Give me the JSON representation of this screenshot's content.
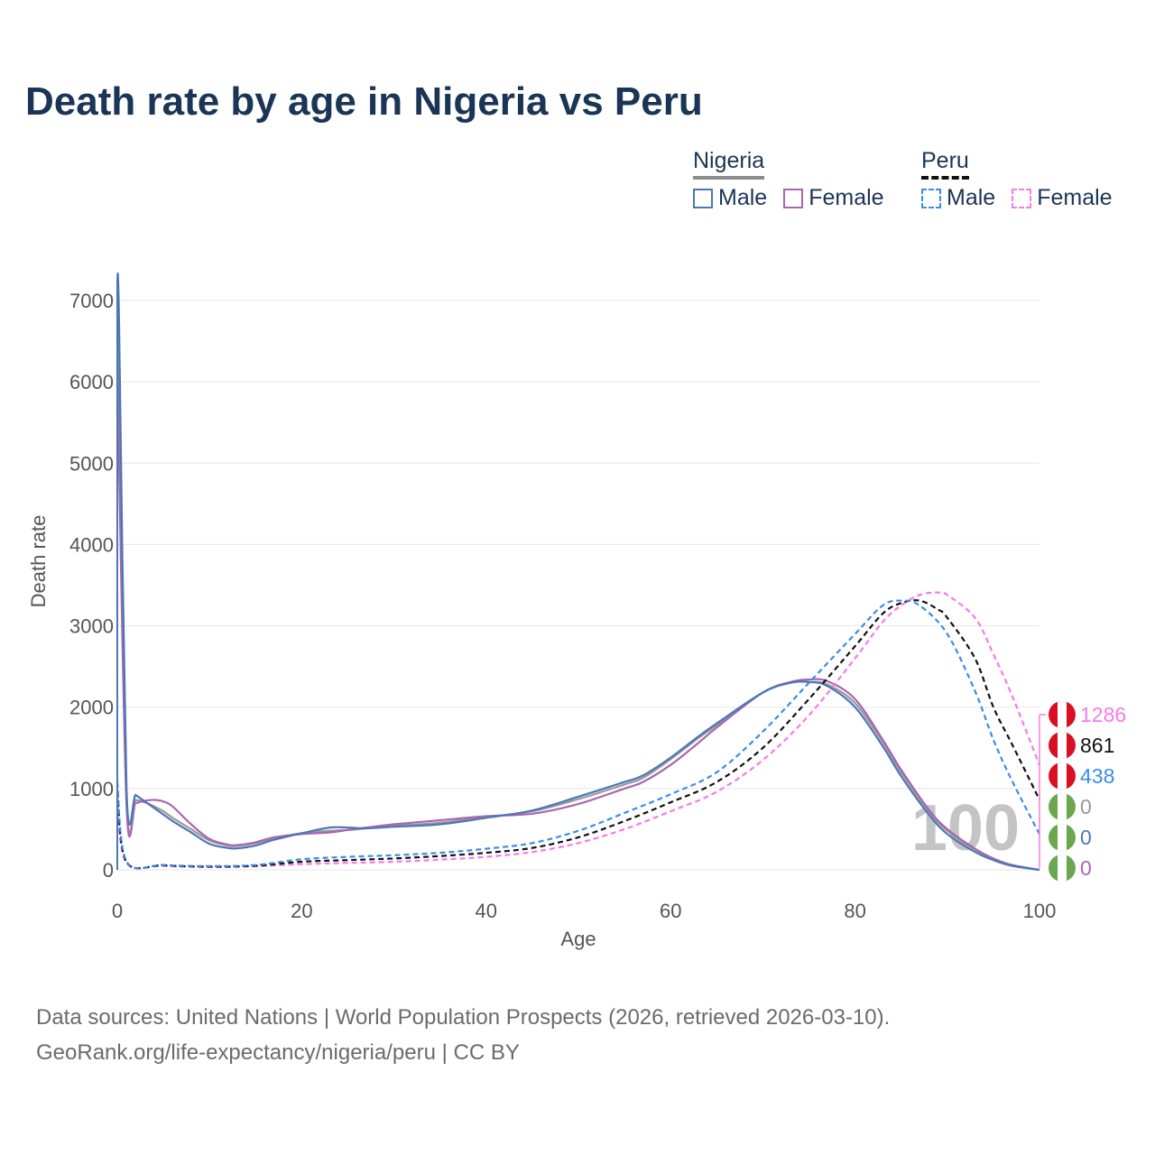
{
  "title": "Death rate by age in Nigeria vs Peru",
  "legend": {
    "nigeria": {
      "title": "Nigeria",
      "male": "Male",
      "female": "Female",
      "underline_color": "#8c8c8c"
    },
    "peru": {
      "title": "Peru",
      "male": "Male",
      "female": "Female",
      "underline_color": "#111111"
    }
  },
  "colors": {
    "nigeria_male": "#4a78b5",
    "nigeria_female": "#a966b0",
    "nigeria_total": "#999999",
    "peru_male": "#3d8ce8",
    "peru_female": "#f57be8",
    "peru_total": "#111111"
  },
  "end_labels": [
    {
      "series": "peru_female",
      "text": "1286",
      "color": "#f57be8",
      "flag": "flag-peru"
    },
    {
      "series": "peru_total",
      "text": "861",
      "color": "#111111",
      "flag": "flag-peru"
    },
    {
      "series": "peru_male",
      "text": "438",
      "color": "#3d8ce8",
      "flag": "flag-peru"
    },
    {
      "series": "nigeria_total",
      "text": "0",
      "color": "#999999",
      "flag": "flag-nigeria"
    },
    {
      "series": "nigeria_male",
      "text": "0",
      "color": "#4a78b5",
      "flag": "flag-nigeria"
    },
    {
      "series": "nigeria_female",
      "text": "0",
      "color": "#a966b0",
      "flag": "flag-nigeria"
    }
  ],
  "watermark": "100",
  "source_lines": [
    "Data sources: United Nations | World Population Prospects (2026, retrieved 2026-03-10).",
    "GeoRank.org/life-expectancy/nigeria/peru | CC BY"
  ],
  "chart_data": {
    "type": "line",
    "title": "Death rate by age in Nigeria vs Peru",
    "xlabel": "Age",
    "ylabel": "Death rate",
    "xlim": [
      0,
      100
    ],
    "ylim": [
      0,
      7000
    ],
    "xticks": [
      0,
      20,
      40,
      60,
      80,
      100
    ],
    "yticks": [
      0,
      1000,
      2000,
      3000,
      4000,
      5000,
      6000,
      7000
    ],
    "grid": true,
    "series": [
      {
        "key": "nigeria_total",
        "name": "Nigeria",
        "dashed": false,
        "x": [
          0,
          1,
          2,
          3,
          4,
          5,
          6,
          8,
          10,
          12,
          13,
          15,
          17,
          20,
          23,
          25,
          27,
          30,
          35,
          40,
          45,
          50,
          55,
          57,
          60,
          63,
          65,
          70,
          73,
          75,
          77,
          80,
          83,
          85,
          88,
          90,
          93,
          95,
          97,
          100
        ],
        "y": [
          6700,
          880,
          860,
          830,
          780,
          720,
          640,
          500,
          360,
          300,
          295,
          330,
          390,
          450,
          480,
          490,
          510,
          540,
          580,
          650,
          720,
          870,
          1050,
          1130,
          1360,
          1620,
          1780,
          2180,
          2300,
          2310,
          2280,
          2050,
          1570,
          1200,
          720,
          480,
          250,
          140,
          60,
          0
        ]
      },
      {
        "key": "nigeria_male",
        "name": "Nigeria Male",
        "dashed": false,
        "x": [
          0,
          0.2,
          1,
          2,
          3,
          4,
          5,
          6,
          8,
          10,
          12,
          13,
          15,
          17,
          20,
          23,
          25,
          27,
          30,
          35,
          40,
          45,
          50,
          55,
          57,
          60,
          63,
          65,
          70,
          73,
          75,
          77,
          80,
          83,
          85,
          88,
          90,
          93,
          95,
          97,
          100
        ],
        "y": [
          7250,
          6700,
          1000,
          920,
          840,
          760,
          680,
          600,
          460,
          320,
          270,
          265,
          300,
          370,
          450,
          520,
          520,
          510,
          530,
          560,
          640,
          730,
          900,
          1080,
          1160,
          1380,
          1640,
          1800,
          2180,
          2300,
          2310,
          2260,
          2000,
          1520,
          1150,
          680,
          440,
          220,
          120,
          50,
          0
        ]
      },
      {
        "key": "nigeria_female",
        "name": "Nigeria Female",
        "dashed": false,
        "x": [
          0,
          1,
          2,
          3,
          4,
          5,
          6,
          8,
          10,
          12,
          13,
          15,
          17,
          20,
          23,
          25,
          27,
          30,
          35,
          40,
          45,
          50,
          55,
          57,
          60,
          63,
          65,
          70,
          73,
          75,
          77,
          80,
          83,
          85,
          88,
          90,
          93,
          95,
          97,
          100
        ],
        "y": [
          6150,
          800,
          820,
          850,
          860,
          840,
          780,
          560,
          380,
          310,
          305,
          340,
          400,
          440,
          460,
          490,
          520,
          560,
          610,
          660,
          690,
          810,
          1000,
          1080,
          1290,
          1560,
          1750,
          2180,
          2310,
          2340,
          2320,
          2100,
          1600,
          1230,
          740,
          500,
          260,
          140,
          60,
          0
        ]
      },
      {
        "key": "peru_male",
        "name": "Peru Male",
        "dashed": true,
        "x": [
          0,
          1,
          5,
          10,
          15,
          20,
          25,
          30,
          35,
          40,
          45,
          50,
          55,
          60,
          65,
          70,
          75,
          80,
          83,
          85,
          87,
          90,
          93,
          95,
          97,
          100
        ],
        "y": [
          1080,
          105,
          60,
          45,
          60,
          130,
          160,
          180,
          210,
          260,
          330,
          480,
          700,
          930,
          1200,
          1700,
          2300,
          2900,
          3250,
          3310,
          3250,
          2900,
          2200,
          1600,
          1100,
          438
        ]
      },
      {
        "key": "peru_total",
        "name": "Peru",
        "dashed": true,
        "x": [
          0,
          1,
          5,
          10,
          15,
          20,
          25,
          30,
          35,
          40,
          45,
          50,
          55,
          60,
          65,
          70,
          75,
          80,
          83,
          85,
          87,
          89,
          90,
          93,
          95,
          97,
          100
        ],
        "y": [
          950,
          95,
          55,
          40,
          50,
          100,
          120,
          140,
          170,
          210,
          270,
          400,
          600,
          830,
          1080,
          1500,
          2100,
          2750,
          3150,
          3280,
          3310,
          3200,
          3100,
          2600,
          2000,
          1550,
          861
        ]
      },
      {
        "key": "peru_female",
        "name": "Peru Female",
        "dashed": true,
        "x": [
          0,
          1,
          5,
          10,
          15,
          20,
          25,
          30,
          35,
          40,
          45,
          50,
          55,
          60,
          65,
          70,
          75,
          80,
          83,
          85,
          87,
          89,
          90,
          93,
          95,
          97,
          100
        ],
        "y": [
          830,
          85,
          50,
          35,
          45,
          70,
          85,
          100,
          125,
          160,
          220,
          330,
          500,
          720,
          960,
          1350,
          1900,
          2600,
          3050,
          3250,
          3380,
          3410,
          3380,
          3100,
          2650,
          2150,
          1286
        ]
      }
    ]
  }
}
